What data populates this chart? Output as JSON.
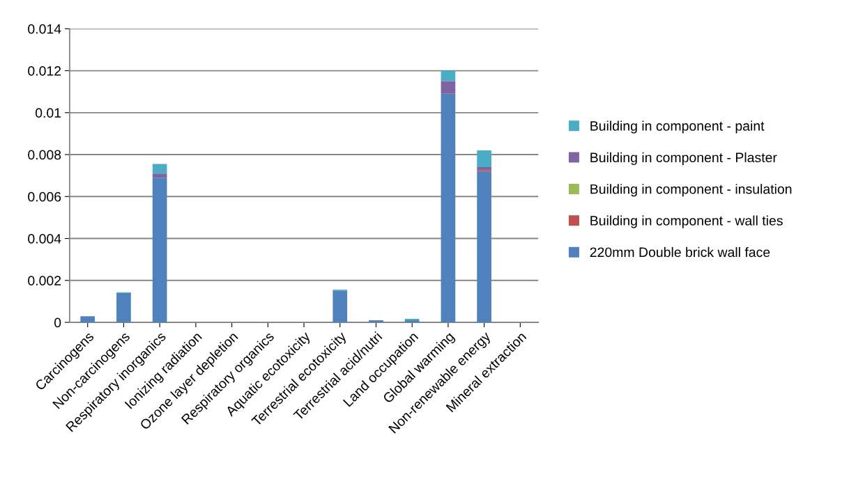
{
  "chart_data": {
    "type": "bar",
    "stacked": true,
    "categories": [
      "Carcinogens",
      "Non-carcinogens",
      "Respiratory inorganics",
      "Ionizing radiation",
      "Ozone layer depletion",
      "Respiratory organics",
      "Aquatic ecotoxicity",
      "Terrestrial ecotoxicity",
      "Terrestrial acid/nutri",
      "Land occupation",
      "Global warming",
      "Non-renewable energy",
      "Mineral extraction"
    ],
    "series": [
      {
        "name": "220mm Double brick wall face",
        "color": "#4f81bd",
        "values": [
          0.00029,
          0.0014,
          0.0069,
          null,
          0,
          0,
          null,
          0.0015,
          0.0001,
          0.0001,
          0.0109,
          0.0072,
          0
        ]
      },
      {
        "name": "Building in component - wall ties",
        "color": "#c0504d",
        "values": [
          0,
          0,
          null,
          0,
          0,
          0,
          0,
          0,
          0,
          0,
          null,
          5e-05,
          0
        ]
      },
      {
        "name": "Building in component - insulation",
        "color": "#9bbb59",
        "values": [
          0,
          0,
          0,
          0,
          0,
          0,
          0,
          0,
          0,
          0,
          0,
          0,
          0
        ]
      },
      {
        "name": "Building in component - Plaster",
        "color": "#8064a2",
        "values": [
          0,
          0,
          0.0002,
          0,
          0,
          0,
          0,
          0,
          0,
          0,
          0.0006,
          0.00015,
          0
        ]
      },
      {
        "name": "Building in component - paint",
        "color": "#4bacc6",
        "values": [
          null,
          4e-05,
          0.00045,
          0,
          0,
          0,
          0,
          6e-05,
          null,
          7e-05,
          0.0005,
          0.0008,
          0
        ]
      }
    ],
    "ylim": [
      0,
      0.014
    ],
    "yticks": [
      {
        "value": 0,
        "label": "0"
      },
      0.002,
      0.004,
      0.006,
      0.008,
      0.01,
      0.012,
      0.014
    ],
    "grid": "y",
    "legend": "right"
  }
}
